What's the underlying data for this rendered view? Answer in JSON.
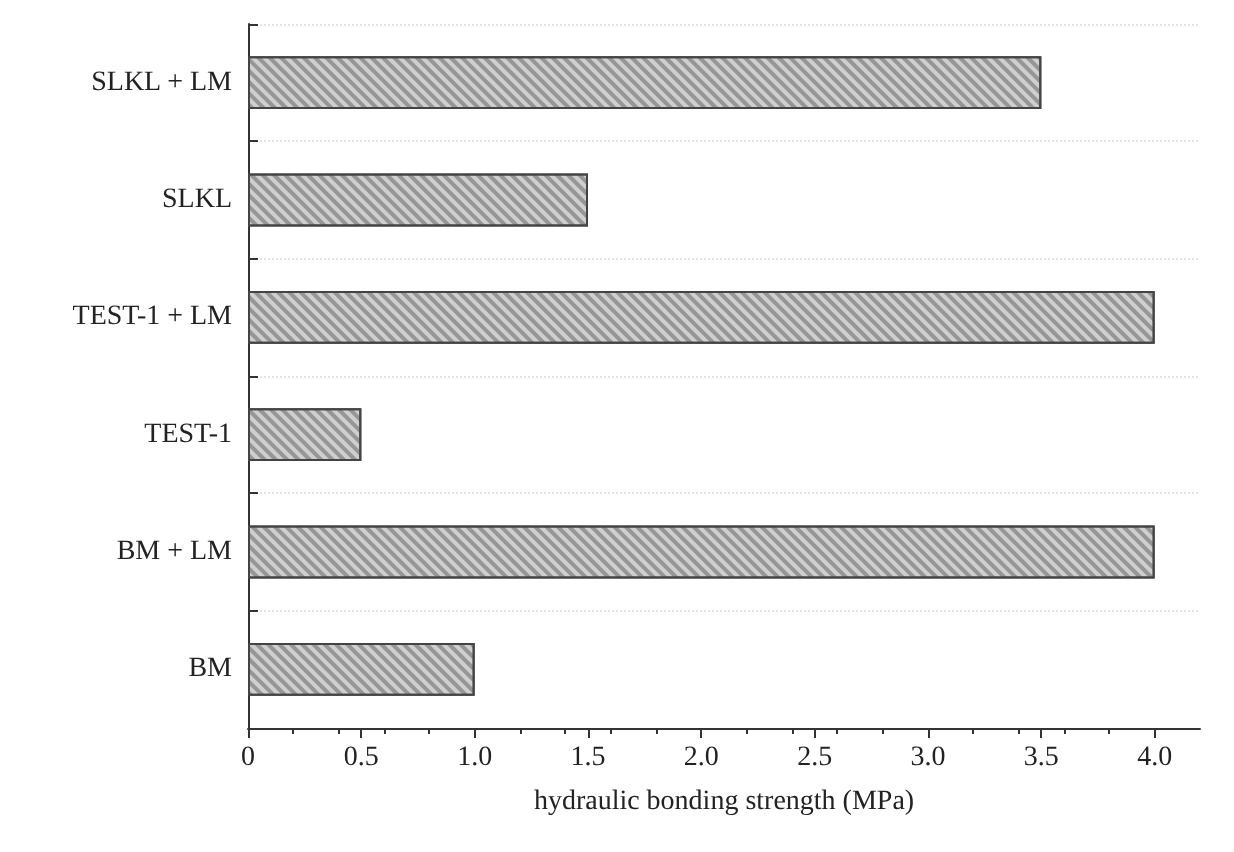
{
  "chart_data": {
    "type": "bar",
    "orientation": "horizontal",
    "xlabel": "hydraulic bonding strength (MPa)",
    "categories": [
      "SLKL + LM",
      "SLKL",
      "TEST-1 + LM",
      "TEST-1",
      "BM + LM",
      "BM"
    ],
    "values": [
      3.5,
      1.5,
      4.0,
      0.5,
      4.0,
      1.0
    ],
    "color": "#cfcfcf",
    "xlim": [
      0,
      4.2
    ],
    "xticks": [
      0,
      0.5,
      {
        "value": 1,
        "label": "1.0"
      },
      1.5,
      {
        "value": 2,
        "label": "2.0"
      },
      2.5,
      {
        "value": 3,
        "label": "3.0"
      },
      3.5,
      {
        "value": 4,
        "label": "4.0"
      }
    ],
    "grid": "y"
  }
}
